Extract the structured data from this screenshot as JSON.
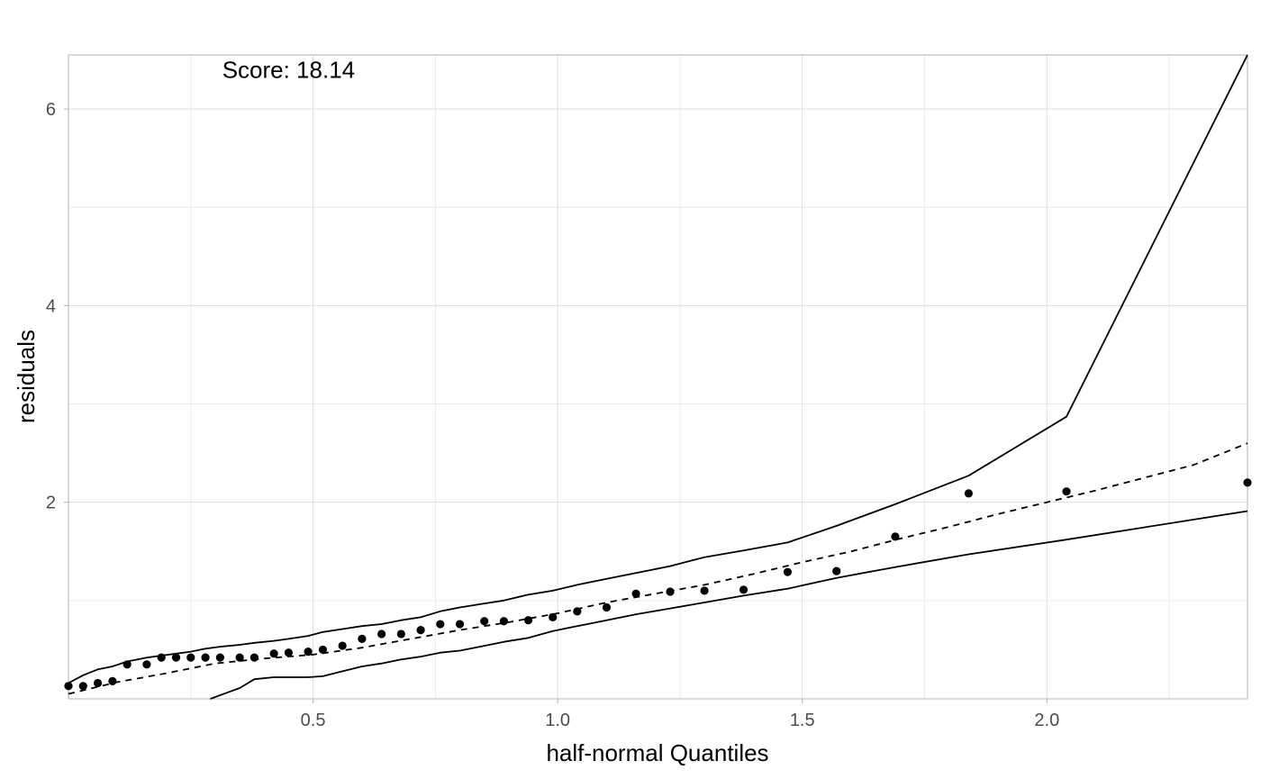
{
  "chart_data": {
    "type": "scatter",
    "xlabel": "half-normal Quantiles",
    "ylabel": "residuals",
    "xlim": [
      0.0,
      2.41
    ],
    "ylim": [
      0.0,
      6.55
    ],
    "x_ticks": [
      0.5,
      1.0,
      1.5,
      2.0
    ],
    "x_tick_labels": [
      "0.5",
      "1.0",
      "1.5",
      "2.0"
    ],
    "y_ticks": [
      2,
      4,
      6
    ],
    "y_tick_labels": [
      "2",
      "4",
      "6"
    ],
    "grid": true,
    "annotation": {
      "text": "Score: 18.14",
      "x": 0.45,
      "y": 6.4
    },
    "points": [
      {
        "x": 0.0,
        "y": 0.13
      },
      {
        "x": 0.03,
        "y": 0.13
      },
      {
        "x": 0.06,
        "y": 0.16
      },
      {
        "x": 0.09,
        "y": 0.18
      },
      {
        "x": 0.12,
        "y": 0.35
      },
      {
        "x": 0.16,
        "y": 0.35
      },
      {
        "x": 0.19,
        "y": 0.42
      },
      {
        "x": 0.22,
        "y": 0.42
      },
      {
        "x": 0.25,
        "y": 0.42
      },
      {
        "x": 0.28,
        "y": 0.42
      },
      {
        "x": 0.31,
        "y": 0.42
      },
      {
        "x": 0.35,
        "y": 0.42
      },
      {
        "x": 0.38,
        "y": 0.42
      },
      {
        "x": 0.42,
        "y": 0.46
      },
      {
        "x": 0.45,
        "y": 0.47
      },
      {
        "x": 0.49,
        "y": 0.48
      },
      {
        "x": 0.52,
        "y": 0.5
      },
      {
        "x": 0.56,
        "y": 0.54
      },
      {
        "x": 0.6,
        "y": 0.61
      },
      {
        "x": 0.64,
        "y": 0.66
      },
      {
        "x": 0.68,
        "y": 0.66
      },
      {
        "x": 0.72,
        "y": 0.7
      },
      {
        "x": 0.76,
        "y": 0.76
      },
      {
        "x": 0.8,
        "y": 0.76
      },
      {
        "x": 0.85,
        "y": 0.79
      },
      {
        "x": 0.89,
        "y": 0.79
      },
      {
        "x": 0.94,
        "y": 0.8
      },
      {
        "x": 0.99,
        "y": 0.83
      },
      {
        "x": 1.04,
        "y": 0.89
      },
      {
        "x": 1.1,
        "y": 0.93
      },
      {
        "x": 1.16,
        "y": 1.07
      },
      {
        "x": 1.23,
        "y": 1.09
      },
      {
        "x": 1.3,
        "y": 1.1
      },
      {
        "x": 1.38,
        "y": 1.11
      },
      {
        "x": 1.47,
        "y": 1.29
      },
      {
        "x": 1.57,
        "y": 1.3
      },
      {
        "x": 1.69,
        "y": 1.65
      },
      {
        "x": 1.84,
        "y": 2.09
      },
      {
        "x": 2.04,
        "y": 2.11
      },
      {
        "x": 2.41,
        "y": 2.2
      }
    ],
    "series": [
      {
        "style": "solid",
        "x": [
          0.0,
          0.03,
          0.06,
          0.09,
          0.12,
          0.16,
          0.19,
          0.22,
          0.25,
          0.28,
          0.31,
          0.35,
          0.38,
          0.42,
          0.45,
          0.49,
          0.52,
          0.56,
          0.6,
          0.64,
          0.68,
          0.72,
          0.76,
          0.8,
          0.85,
          0.89,
          0.94,
          0.99,
          1.04,
          1.1,
          1.16,
          1.23,
          1.3,
          1.38,
          1.47,
          1.57,
          1.69,
          1.84,
          2.04,
          2.41
        ],
        "y": [
          0.16,
          0.24,
          0.3,
          0.33,
          0.38,
          0.42,
          0.44,
          0.46,
          0.48,
          0.51,
          0.53,
          0.55,
          0.57,
          0.59,
          0.61,
          0.64,
          0.68,
          0.71,
          0.74,
          0.76,
          0.8,
          0.83,
          0.89,
          0.93,
          0.97,
          1.0,
          1.06,
          1.1,
          1.16,
          1.22,
          1.28,
          1.35,
          1.44,
          1.51,
          1.59,
          1.76,
          1.98,
          2.27,
          2.87,
          6.55
        ]
      },
      {
        "style": "dashed",
        "x": [
          0.0,
          0.1,
          0.2,
          0.3,
          0.4,
          0.5,
          0.6,
          0.7,
          0.8,
          0.9,
          1.0,
          1.1,
          1.2,
          1.3,
          1.4,
          1.5,
          1.6,
          1.7,
          1.8,
          1.9,
          2.0,
          2.1,
          2.2,
          2.3,
          2.41
        ],
        "y": [
          0.05,
          0.17,
          0.26,
          0.36,
          0.41,
          0.45,
          0.52,
          0.61,
          0.7,
          0.78,
          0.87,
          0.98,
          1.07,
          1.16,
          1.27,
          1.39,
          1.5,
          1.63,
          1.75,
          1.88,
          2.0,
          2.12,
          2.25,
          2.38,
          2.6
        ]
      },
      {
        "style": "solid",
        "x": [
          0.29,
          0.35,
          0.38,
          0.42,
          0.45,
          0.49,
          0.52,
          0.56,
          0.6,
          0.64,
          0.68,
          0.72,
          0.76,
          0.8,
          0.85,
          0.89,
          0.94,
          0.99,
          1.04,
          1.1,
          1.16,
          1.23,
          1.3,
          1.38,
          1.47,
          1.57,
          1.69,
          1.84,
          2.04,
          2.41
        ],
        "y": [
          0.0,
          0.11,
          0.2,
          0.22,
          0.22,
          0.22,
          0.23,
          0.28,
          0.33,
          0.36,
          0.4,
          0.43,
          0.47,
          0.49,
          0.54,
          0.58,
          0.62,
          0.69,
          0.74,
          0.8,
          0.86,
          0.92,
          0.98,
          1.05,
          1.12,
          1.23,
          1.34,
          1.47,
          1.62,
          1.91
        ]
      }
    ]
  }
}
